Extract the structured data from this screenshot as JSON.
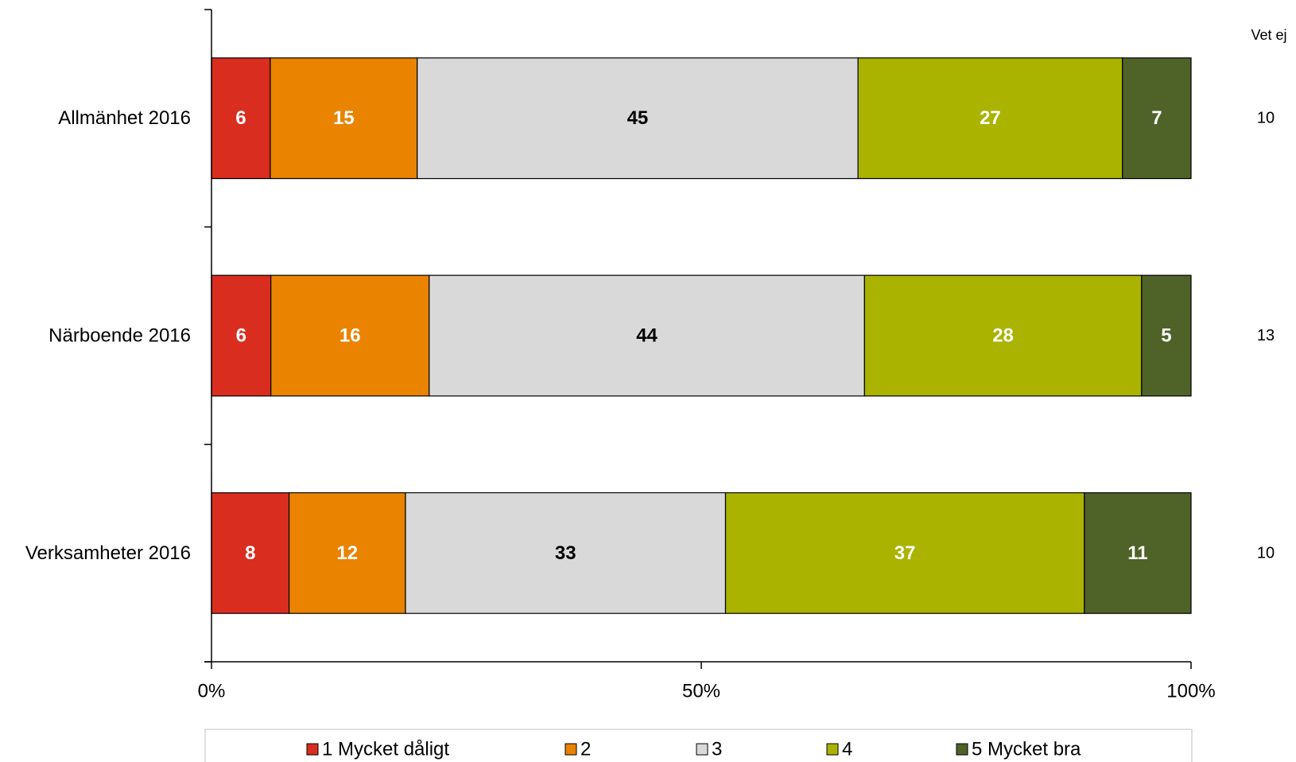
{
  "chart_data": {
    "type": "bar",
    "orientation": "horizontal",
    "stacked": "percent",
    "categories": [
      "Allmänhet 2016",
      "Närboende 2016",
      "Verksamheter 2016"
    ],
    "series": [
      {
        "name": "1 Mycket dåligt",
        "color": "#d92d20",
        "label_color": "#ffffff",
        "values": [
          6,
          6,
          8
        ]
      },
      {
        "name": "2",
        "color": "#e98300",
        "label_color": "#ffffff",
        "values": [
          15,
          16,
          12
        ]
      },
      {
        "name": "3",
        "color": "#d9d9d9",
        "label_color": "#000000",
        "values": [
          45,
          44,
          33
        ]
      },
      {
        "name": "4",
        "color": "#a9b300",
        "label_color": "#ffffff",
        "values": [
          27,
          28,
          37
        ]
      },
      {
        "name": "5 Mycket bra",
        "color": "#4f6228",
        "label_color": "#ffffff",
        "values": [
          7,
          5,
          11
        ]
      }
    ],
    "x_ticks": [
      "0%",
      "50%",
      "100%"
    ],
    "xlim": [
      0,
      100
    ],
    "grid": false,
    "legend_position": "bottom",
    "side_column": {
      "header": "Vet ej",
      "values": [
        "10",
        "13",
        "10"
      ]
    }
  }
}
